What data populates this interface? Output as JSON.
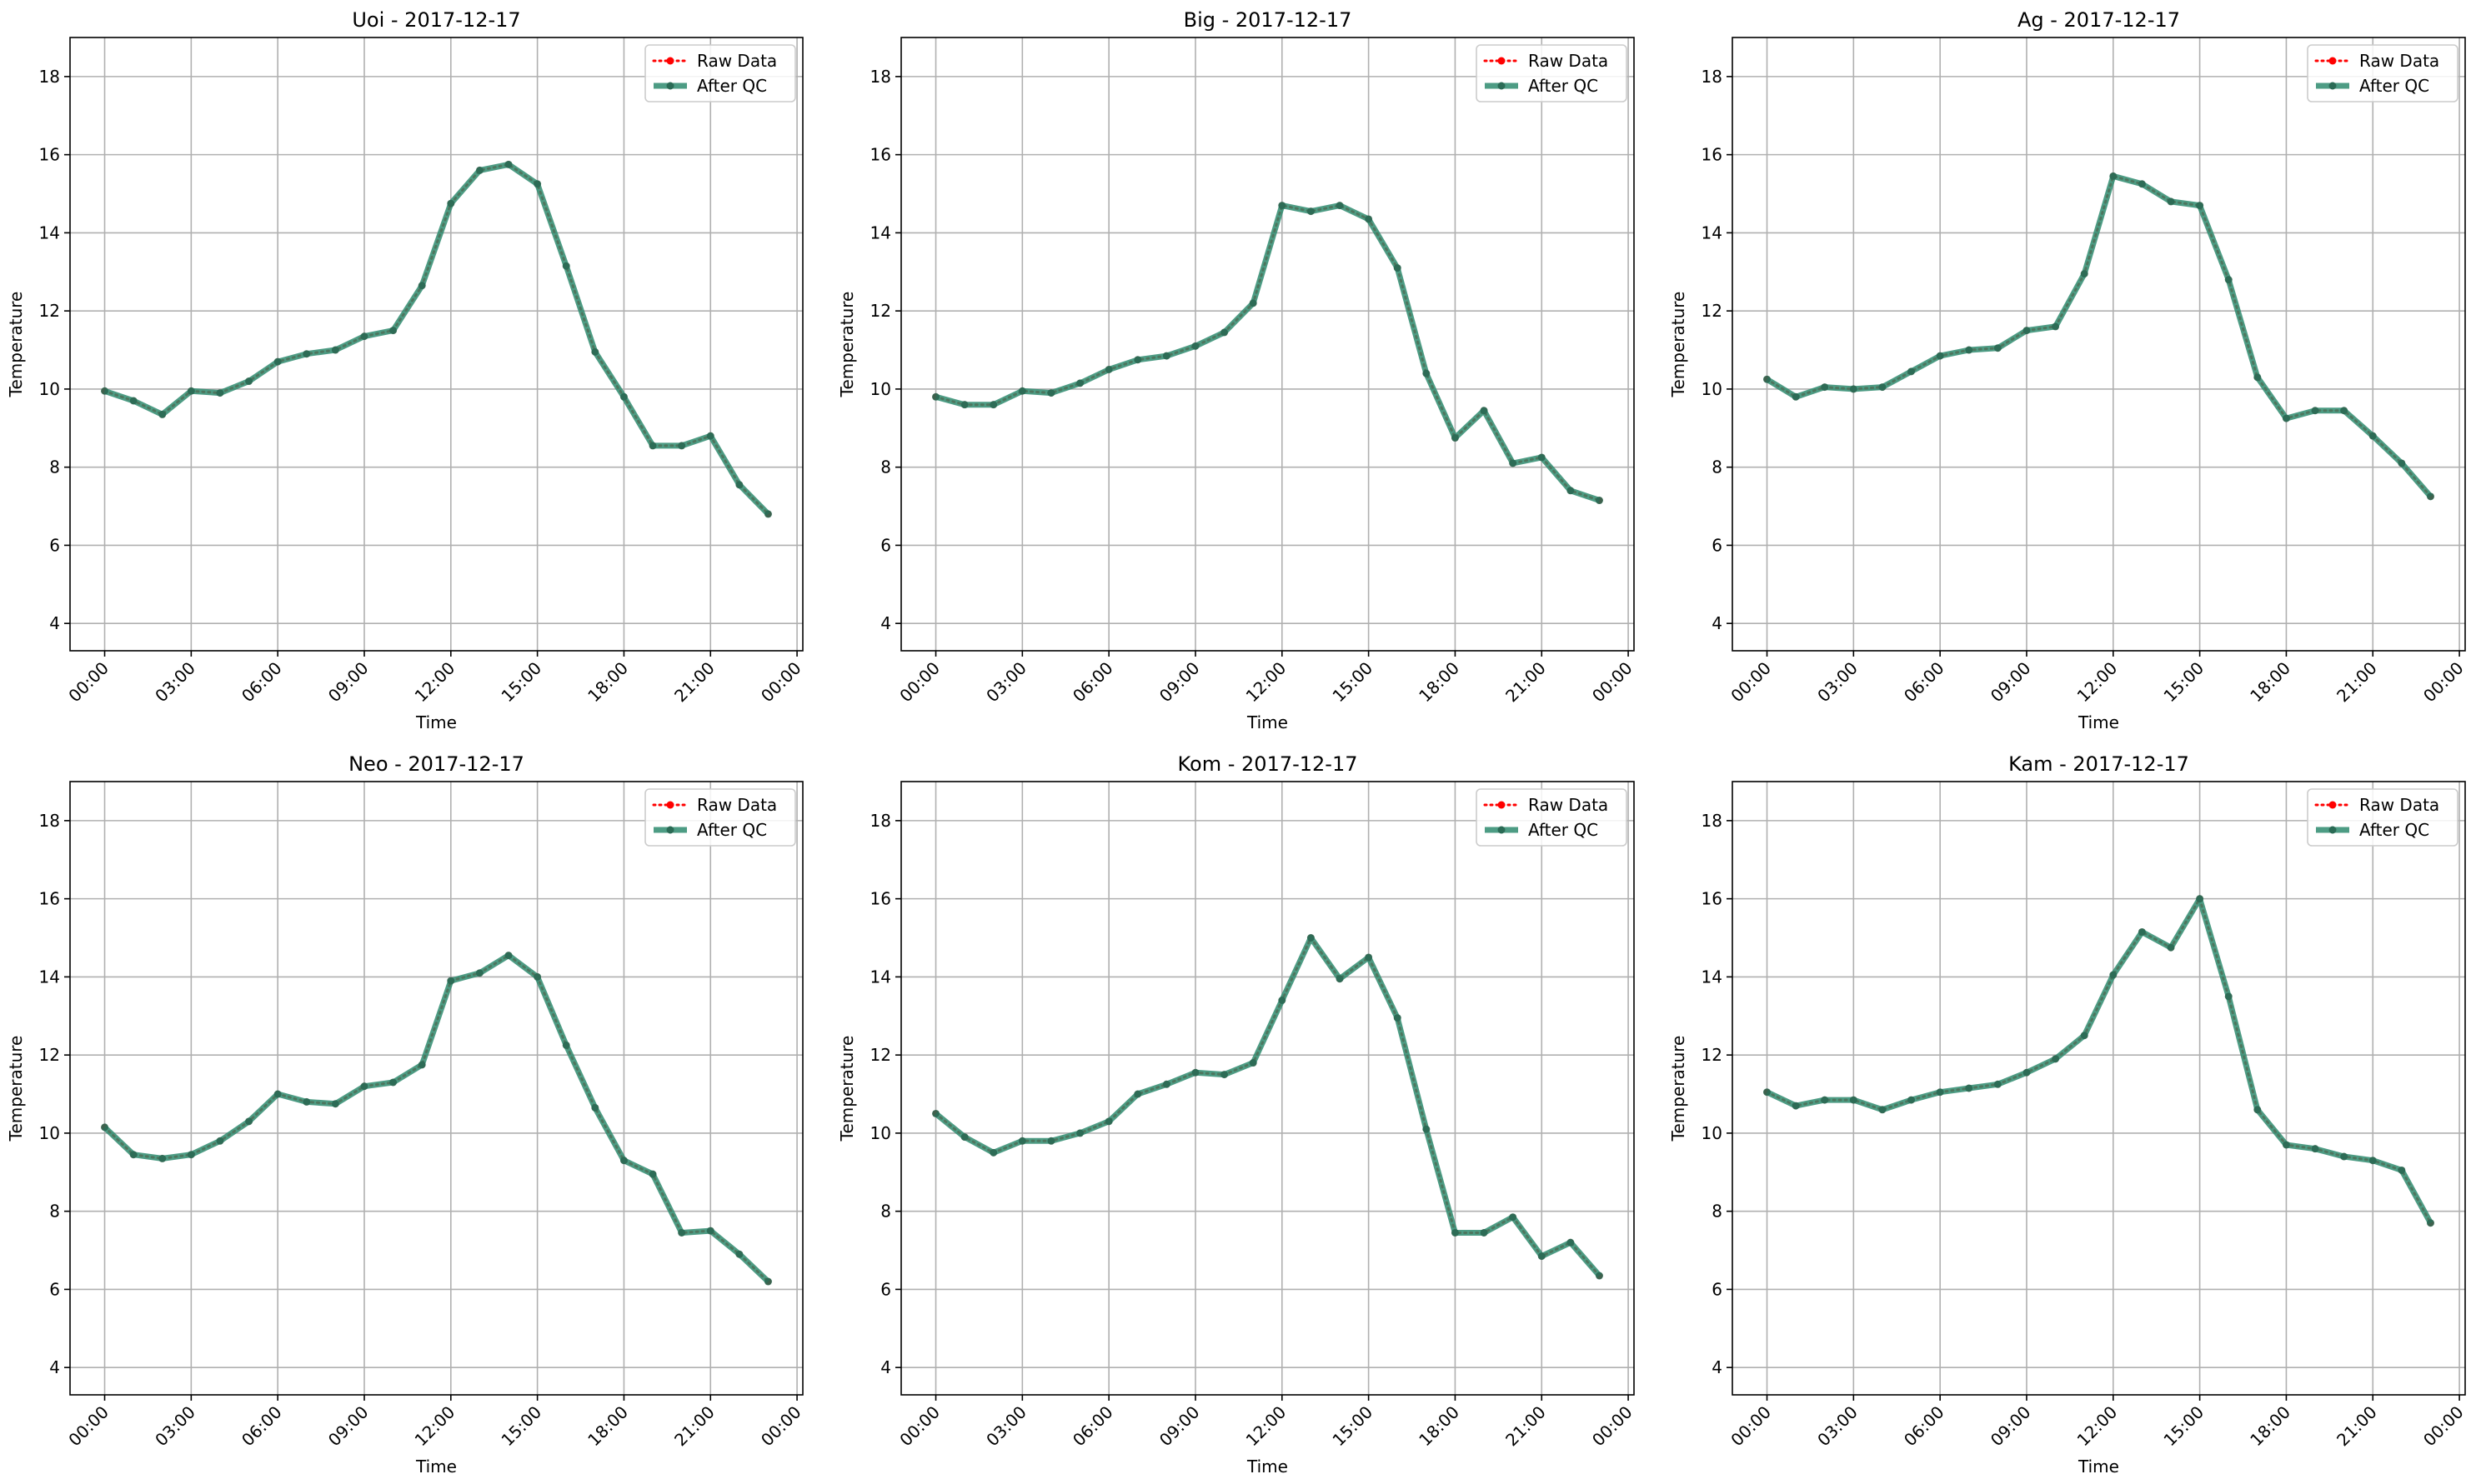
{
  "figure": {
    "legend_raw": "Raw Data",
    "legend_qc": "After QC"
  },
  "colors": {
    "raw": "#ff0000",
    "qc": "#2e8b6f",
    "grid": "#b0b0b0",
    "axes": "#000000"
  },
  "chart_data": [
    {
      "type": "line",
      "title": "Uoi - 2017-12-17",
      "xlabel": "Time",
      "ylabel": "Temperature",
      "xlim": [
        -1.2,
        24.2
      ],
      "ylim": [
        3.3,
        19.0
      ],
      "xticks": [
        0,
        3,
        6,
        9,
        12,
        15,
        18,
        21,
        24
      ],
      "xtick_labels": [
        "00:00",
        "03:00",
        "06:00",
        "09:00",
        "12:00",
        "15:00",
        "18:00",
        "21:00",
        "00:00"
      ],
      "yticks": [
        4,
        6,
        8,
        10,
        12,
        14,
        16,
        18
      ],
      "grid": true,
      "legend_placement": "upper right",
      "x": [
        0,
        1,
        2,
        3,
        4,
        5,
        6,
        7,
        8,
        9,
        10,
        11,
        12,
        13,
        14,
        15,
        16,
        17,
        18,
        19,
        20,
        21,
        22,
        23
      ],
      "series": [
        {
          "name": "Raw Data",
          "values": [
            9.95,
            9.7,
            9.35,
            9.95,
            9.9,
            10.2,
            10.7,
            10.9,
            11.0,
            11.35,
            11.5,
            12.65,
            14.75,
            15.6,
            15.75,
            15.25,
            13.15,
            10.95,
            9.8,
            8.55,
            8.55,
            8.8,
            7.55,
            6.8
          ]
        },
        {
          "name": "After QC",
          "values": [
            9.95,
            9.7,
            9.35,
            9.95,
            9.9,
            10.2,
            10.7,
            10.9,
            11.0,
            11.35,
            11.5,
            12.65,
            14.75,
            15.6,
            15.75,
            15.25,
            13.15,
            10.95,
            9.8,
            8.55,
            8.55,
            8.8,
            7.55,
            6.8
          ]
        }
      ]
    },
    {
      "type": "line",
      "title": "Big - 2017-12-17",
      "xlabel": "Time",
      "ylabel": "Temperature",
      "xlim": [
        -1.2,
        24.2
      ],
      "ylim": [
        3.3,
        19.0
      ],
      "xticks": [
        0,
        3,
        6,
        9,
        12,
        15,
        18,
        21,
        24
      ],
      "xtick_labels": [
        "00:00",
        "03:00",
        "06:00",
        "09:00",
        "12:00",
        "15:00",
        "18:00",
        "21:00",
        "00:00"
      ],
      "yticks": [
        4,
        6,
        8,
        10,
        12,
        14,
        16,
        18
      ],
      "grid": true,
      "legend_placement": "upper right",
      "x": [
        0,
        1,
        2,
        3,
        4,
        5,
        6,
        7,
        8,
        9,
        10,
        11,
        12,
        13,
        14,
        15,
        16,
        17,
        18,
        19,
        20,
        21,
        22,
        23
      ],
      "series": [
        {
          "name": "Raw Data",
          "values": [
            9.8,
            9.6,
            9.6,
            9.95,
            9.9,
            10.15,
            10.5,
            10.75,
            10.85,
            11.1,
            11.45,
            12.2,
            14.7,
            14.55,
            14.7,
            14.35,
            13.1,
            10.4,
            8.75,
            9.45,
            8.1,
            8.25,
            7.4,
            7.15
          ]
        },
        {
          "name": "After QC",
          "values": [
            9.8,
            9.6,
            9.6,
            9.95,
            9.9,
            10.15,
            10.5,
            10.75,
            10.85,
            11.1,
            11.45,
            12.2,
            14.7,
            14.55,
            14.7,
            14.35,
            13.1,
            10.4,
            8.75,
            9.45,
            8.1,
            8.25,
            7.4,
            7.15
          ]
        }
      ]
    },
    {
      "type": "line",
      "title": "Ag - 2017-12-17",
      "xlabel": "Time",
      "ylabel": "Temperature",
      "xlim": [
        -1.2,
        24.2
      ],
      "ylim": [
        3.3,
        19.0
      ],
      "xticks": [
        0,
        3,
        6,
        9,
        12,
        15,
        18,
        21,
        24
      ],
      "xtick_labels": [
        "00:00",
        "03:00",
        "06:00",
        "09:00",
        "12:00",
        "15:00",
        "18:00",
        "21:00",
        "00:00"
      ],
      "yticks": [
        4,
        6,
        8,
        10,
        12,
        14,
        16,
        18
      ],
      "grid": true,
      "legend_placement": "upper right",
      "x": [
        0,
        1,
        2,
        3,
        4,
        5,
        6,
        7,
        8,
        9,
        10,
        11,
        12,
        13,
        14,
        15,
        16,
        17,
        18,
        19,
        20,
        21,
        22,
        23
      ],
      "series": [
        {
          "name": "Raw Data",
          "values": [
            10.25,
            9.8,
            10.05,
            10.0,
            10.05,
            10.45,
            10.85,
            11.0,
            11.05,
            11.5,
            11.6,
            12.95,
            15.45,
            15.25,
            14.8,
            14.7,
            12.8,
            10.3,
            9.25,
            9.45,
            9.45,
            8.8,
            8.1,
            7.25
          ]
        },
        {
          "name": "After QC",
          "values": [
            10.25,
            9.8,
            10.05,
            10.0,
            10.05,
            10.45,
            10.85,
            11.0,
            11.05,
            11.5,
            11.6,
            12.95,
            15.45,
            15.25,
            14.8,
            14.7,
            12.8,
            10.3,
            9.25,
            9.45,
            9.45,
            8.8,
            8.1,
            7.25
          ]
        }
      ]
    },
    {
      "type": "line",
      "title": "Neo - 2017-12-17",
      "xlabel": "Time",
      "ylabel": "Temperature",
      "xlim": [
        -1.2,
        24.2
      ],
      "ylim": [
        3.3,
        19.0
      ],
      "xticks": [
        0,
        3,
        6,
        9,
        12,
        15,
        18,
        21,
        24
      ],
      "xtick_labels": [
        "00:00",
        "03:00",
        "06:00",
        "09:00",
        "12:00",
        "15:00",
        "18:00",
        "21:00",
        "00:00"
      ],
      "yticks": [
        4,
        6,
        8,
        10,
        12,
        14,
        16,
        18
      ],
      "grid": true,
      "legend_placement": "upper right",
      "x": [
        0,
        1,
        2,
        3,
        4,
        5,
        6,
        7,
        8,
        9,
        10,
        11,
        12,
        13,
        14,
        15,
        16,
        17,
        18,
        19,
        20,
        21,
        22,
        23
      ],
      "series": [
        {
          "name": "Raw Data",
          "values": [
            10.15,
            9.45,
            9.35,
            9.45,
            9.8,
            10.3,
            11.0,
            10.8,
            10.75,
            11.2,
            11.3,
            11.75,
            13.9,
            14.1,
            14.55,
            14.0,
            12.25,
            10.65,
            9.3,
            8.95,
            7.45,
            7.5,
            6.9,
            6.2
          ]
        },
        {
          "name": "After QC",
          "values": [
            10.15,
            9.45,
            9.35,
            9.45,
            9.8,
            10.3,
            11.0,
            10.8,
            10.75,
            11.2,
            11.3,
            11.75,
            13.9,
            14.1,
            14.55,
            14.0,
            12.25,
            10.65,
            9.3,
            8.95,
            7.45,
            7.5,
            6.9,
            6.2
          ]
        }
      ]
    },
    {
      "type": "line",
      "title": "Kom - 2017-12-17",
      "xlabel": "Time",
      "ylabel": "Temperature",
      "xlim": [
        -1.2,
        24.2
      ],
      "ylim": [
        3.3,
        19.0
      ],
      "xticks": [
        0,
        3,
        6,
        9,
        12,
        15,
        18,
        21,
        24
      ],
      "xtick_labels": [
        "00:00",
        "03:00",
        "06:00",
        "09:00",
        "12:00",
        "15:00",
        "18:00",
        "21:00",
        "00:00"
      ],
      "yticks": [
        4,
        6,
        8,
        10,
        12,
        14,
        16,
        18
      ],
      "grid": true,
      "legend_placement": "upper right",
      "x": [
        0,
        1,
        2,
        3,
        4,
        5,
        6,
        7,
        8,
        9,
        10,
        11,
        12,
        13,
        14,
        15,
        16,
        17,
        18,
        19,
        20,
        21,
        22,
        23
      ],
      "series": [
        {
          "name": "Raw Data",
          "values": [
            10.5,
            9.9,
            9.5,
            9.8,
            9.8,
            10.0,
            10.3,
            11.0,
            11.25,
            11.55,
            11.5,
            11.8,
            13.4,
            15.0,
            13.95,
            14.5,
            12.95,
            10.1,
            7.45,
            7.45,
            7.85,
            6.85,
            7.2,
            6.35
          ]
        },
        {
          "name": "After QC",
          "values": [
            10.5,
            9.9,
            9.5,
            9.8,
            9.8,
            10.0,
            10.3,
            11.0,
            11.25,
            11.55,
            11.5,
            11.8,
            13.4,
            15.0,
            13.95,
            14.5,
            12.95,
            10.1,
            7.45,
            7.45,
            7.85,
            6.85,
            7.2,
            6.35
          ]
        }
      ]
    },
    {
      "type": "line",
      "title": "Kam - 2017-12-17",
      "xlabel": "Time",
      "ylabel": "Temperature",
      "xlim": [
        -1.2,
        24.2
      ],
      "ylim": [
        3.3,
        19.0
      ],
      "xticks": [
        0,
        3,
        6,
        9,
        12,
        15,
        18,
        21,
        24
      ],
      "xtick_labels": [
        "00:00",
        "03:00",
        "06:00",
        "09:00",
        "12:00",
        "15:00",
        "18:00",
        "21:00",
        "00:00"
      ],
      "yticks": [
        4,
        6,
        8,
        10,
        12,
        14,
        16,
        18
      ],
      "grid": true,
      "legend_placement": "upper right",
      "x": [
        0,
        1,
        2,
        3,
        4,
        5,
        6,
        7,
        8,
        9,
        10,
        11,
        12,
        13,
        14,
        15,
        16,
        17,
        18,
        19,
        20,
        21,
        22,
        23
      ],
      "series": [
        {
          "name": "Raw Data",
          "values": [
            11.05,
            10.7,
            10.85,
            10.85,
            10.6,
            10.85,
            11.05,
            11.15,
            11.25,
            11.55,
            11.9,
            12.5,
            14.05,
            15.15,
            14.75,
            16.0,
            13.5,
            10.6,
            9.7,
            9.6,
            9.4,
            9.3,
            9.05,
            7.7
          ]
        },
        {
          "name": "After QC",
          "values": [
            11.05,
            10.7,
            10.85,
            10.85,
            10.6,
            10.85,
            11.05,
            11.15,
            11.25,
            11.55,
            11.9,
            12.5,
            14.05,
            15.15,
            14.75,
            16.0,
            13.5,
            10.6,
            9.7,
            9.6,
            9.4,
            9.3,
            9.05,
            7.7
          ]
        }
      ]
    }
  ]
}
